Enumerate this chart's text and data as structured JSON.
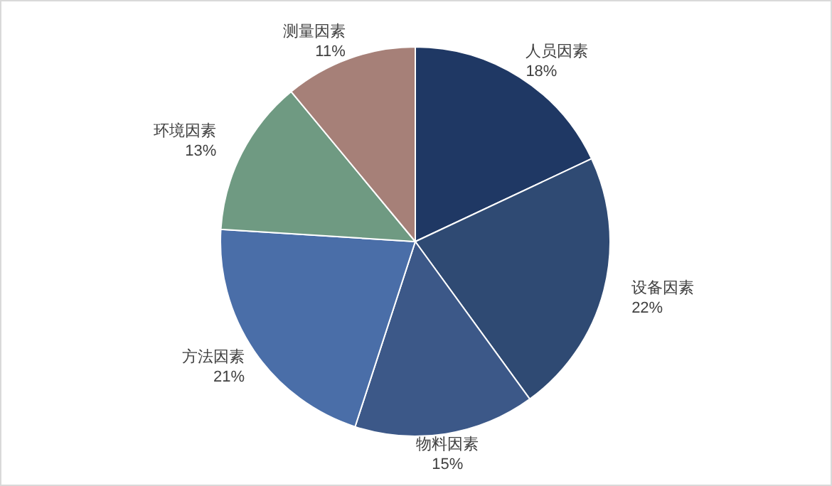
{
  "chart_data": {
    "type": "pie",
    "categories": [
      "人员因素",
      "设备因素",
      "物料因素",
      "方法因素",
      "环境因素",
      "测量因素"
    ],
    "values": [
      18,
      22,
      15,
      21,
      13,
      11
    ],
    "value_labels": [
      "18%",
      "22%",
      "15%",
      "21%",
      "13%",
      "11%"
    ],
    "colors": [
      "#1f3864",
      "#2f4a73",
      "#3c5888",
      "#4a6ea8",
      "#6f9a82",
      "#a68078"
    ],
    "legend": false
  }
}
